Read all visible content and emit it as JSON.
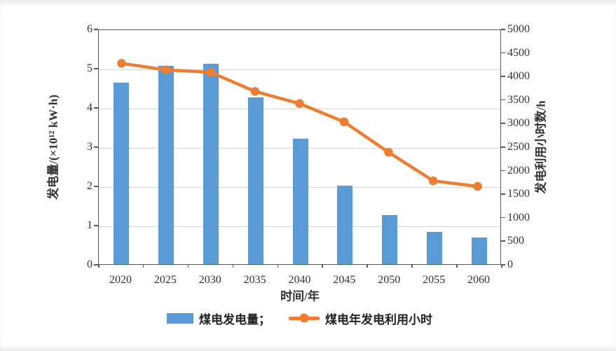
{
  "chart_data": {
    "type": "bar-line-combo",
    "categories": [
      "2020",
      "2025",
      "2030",
      "2035",
      "2040",
      "2045",
      "2050",
      "2055",
      "2060"
    ],
    "series": [
      {
        "name": "煤电发电量",
        "type": "bar",
        "axis": "left",
        "unit": "×10¹² kW·h",
        "color": "#5B9BD5",
        "values": [
          4.63,
          5.05,
          5.1,
          4.25,
          3.2,
          2.0,
          1.25,
          0.83,
          0.67
        ]
      },
      {
        "name": "煤电年发电利用小时",
        "type": "line",
        "axis": "right",
        "unit": "h",
        "color": "#ED7D31",
        "marker": "circle",
        "values": [
          4290,
          4150,
          4100,
          3690,
          3430,
          3040,
          2390,
          1780,
          1660
        ]
      }
    ],
    "left_axis": {
      "label": "发电量/(×10¹² kW·h)",
      "min": 0,
      "max": 6,
      "tick_step": 1
    },
    "right_axis": {
      "label": "发电利用小时数/h",
      "min": 0,
      "max": 5000,
      "tick_step": 500
    },
    "x_axis": {
      "label": "时间/年"
    },
    "grid": {
      "horizontal": true,
      "vertical": false
    },
    "legend": {
      "position": "bottom",
      "items": [
        "煤电发电量；",
        "煤电年发电利用小时"
      ]
    }
  },
  "colors": {
    "bar": "#5B9BD5",
    "line": "#ED7D31",
    "gridline": "#D9D9D9",
    "axis": "#595959",
    "text": "#333333",
    "background": "#FFFFFF"
  }
}
